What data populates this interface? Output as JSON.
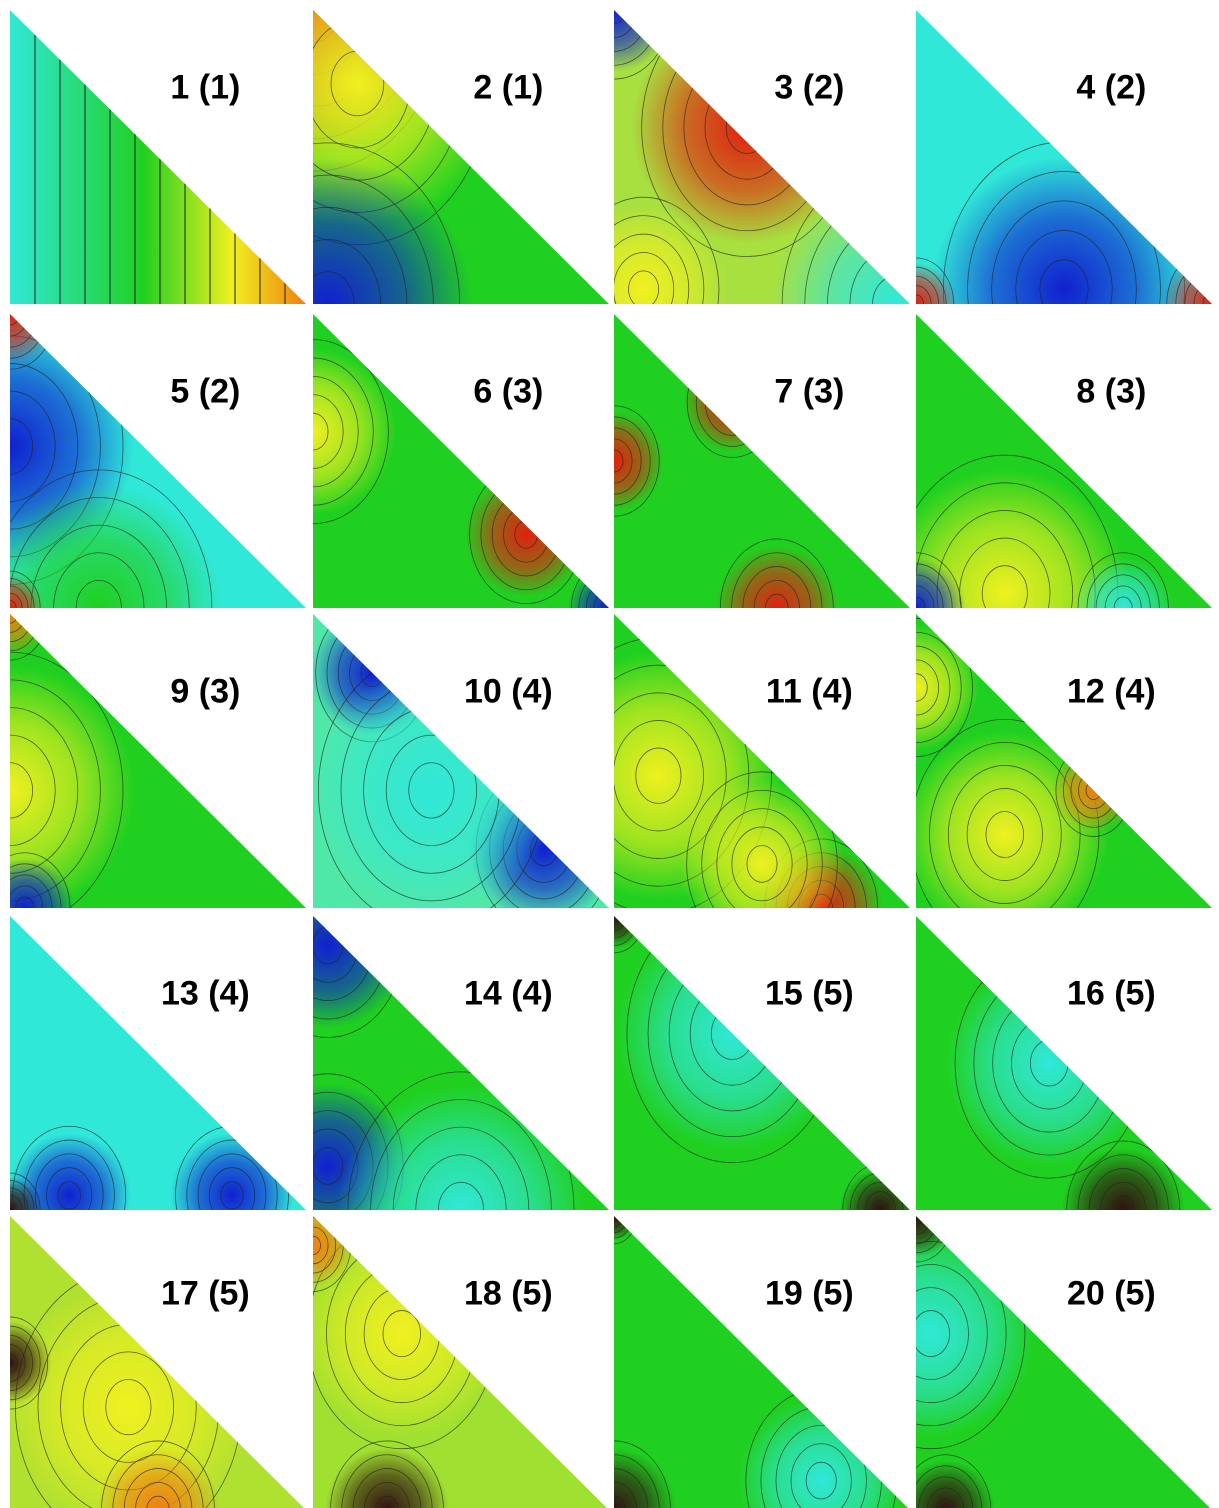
{
  "panels": [
    "1 (1)",
    "2 (1)",
    "3 (2)",
    "4 (2)",
    "5 (2)",
    "6 (3)",
    "7 (3)",
    "8 (3)",
    "9 (3)",
    "10 (4)",
    "11 (4)",
    "12 (4)",
    "13 (4)",
    "14 (4)",
    "15 (5)",
    "16 (5)",
    "17 (5)",
    "18 (5)",
    "19 (5)",
    "20 (5)"
  ]
}
